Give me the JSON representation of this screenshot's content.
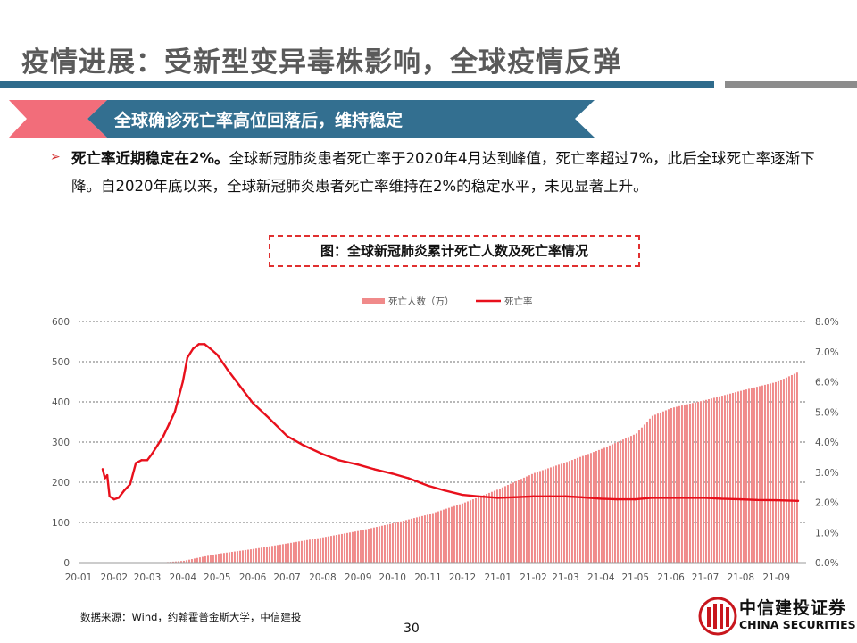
{
  "page": {
    "title": "疫情进展：受新型变异毒株影响，全球疫情反弹",
    "section_heading": "全球确诊死亡率高位回落后，维持稳定",
    "bullet_bold": "死亡率近期稳定在2%。",
    "bullet_text": "全球新冠肺炎患者死亡率于2020年4月达到峰值，死亡率超过7%，此后全球死亡率逐渐下降。自2020年底以来，全球新冠肺炎患者死亡率维持在2%的稳定水平，未见显著上升。",
    "figure_title": "图：全球新冠肺炎累计死亡人数及死亡率情况",
    "source": "数据来源：Wind，约翰霍普金斯大学，中信建投",
    "page_number": "30",
    "logo_cn": "中信建投证券",
    "logo_en": "CHINA SECURITIES"
  },
  "colors": {
    "title_bar": "#2f6b8c",
    "banner_red": "#f26d7a",
    "bar": "#f08a8a",
    "line": "#e8101c"
  },
  "chart_data": {
    "type": "bar",
    "x_axis_labels": [
      "20-01",
      "20-02",
      "20-03",
      "20-04",
      "20-05",
      "20-06",
      "20-07",
      "20-08",
      "20-09",
      "20-10",
      "20-11",
      "20-12",
      "21-01",
      "21-02",
      "21-03",
      "21-04",
      "21-05",
      "21-06",
      "21-07",
      "21-08",
      "21-09"
    ],
    "ylim_left": [
      0,
      600
    ],
    "yticks_left": [
      "0",
      "100",
      "200",
      "300",
      "400",
      "500",
      "600"
    ],
    "ylim_right": [
      0,
      8.0
    ],
    "yticks_right": [
      "0.0%",
      "1.0%",
      "2.0%",
      "3.0%",
      "4.0%",
      "5.0%",
      "6.0%",
      "7.0%",
      "8.0%"
    ],
    "grid": true,
    "legend_position": "top",
    "series": [
      {
        "name": "死亡人数（万）",
        "type": "bar",
        "axis": "left",
        "x": [
          "2020-01-22",
          "2020-02-01",
          "2020-03-01",
          "2020-03-15",
          "2020-04-01",
          "2020-04-15",
          "2020-05-01",
          "2020-06-01",
          "2020-07-01",
          "2020-08-01",
          "2020-09-01",
          "2020-10-01",
          "2020-11-01",
          "2020-12-01",
          "2021-01-01",
          "2021-02-01",
          "2021-03-01",
          "2021-04-01",
          "2021-05-01",
          "2021-05-15",
          "2021-06-01",
          "2021-07-01",
          "2021-08-01",
          "2021-09-01",
          "2021-09-20"
        ],
        "values": [
          0,
          0.03,
          0.3,
          0.8,
          4.5,
          13,
          22,
          34,
          48,
          63,
          79,
          98,
          120,
          148,
          183,
          223,
          250,
          283,
          321,
          365,
          385,
          405,
          428,
          450,
          475
        ]
      },
      {
        "name": "死亡率",
        "type": "line",
        "axis": "right",
        "unit": "%",
        "x": [
          "2020-01-22",
          "2020-01-24",
          "2020-01-26",
          "2020-01-28",
          "2020-02-01",
          "2020-02-05",
          "2020-02-10",
          "2020-02-15",
          "2020-02-20",
          "2020-02-25",
          "2020-03-01",
          "2020-03-05",
          "2020-03-10",
          "2020-03-15",
          "2020-03-20",
          "2020-03-25",
          "2020-04-01",
          "2020-04-05",
          "2020-04-10",
          "2020-04-15",
          "2020-04-20",
          "2020-04-25",
          "2020-05-01",
          "2020-05-10",
          "2020-05-20",
          "2020-06-01",
          "2020-06-15",
          "2020-07-01",
          "2020-07-15",
          "2020-08-01",
          "2020-08-15",
          "2020-09-01",
          "2020-09-15",
          "2020-10-01",
          "2020-10-15",
          "2020-11-01",
          "2020-11-15",
          "2020-12-01",
          "2020-12-15",
          "2021-01-01",
          "2021-01-15",
          "2021-02-01",
          "2021-02-15",
          "2021-03-01",
          "2021-03-15",
          "2021-04-01",
          "2021-04-15",
          "2021-05-01",
          "2021-05-15",
          "2021-06-01",
          "2021-06-15",
          "2021-07-01",
          "2021-07-15",
          "2021-08-01",
          "2021-08-15",
          "2021-09-01",
          "2021-09-20"
        ],
        "values": [
          3.1,
          2.8,
          2.9,
          2.2,
          2.1,
          2.15,
          2.4,
          2.6,
          3.3,
          3.4,
          3.4,
          3.6,
          3.9,
          4.2,
          4.6,
          5.0,
          6.0,
          6.8,
          7.1,
          7.25,
          7.25,
          7.1,
          6.9,
          6.4,
          5.9,
          5.3,
          4.8,
          4.2,
          3.9,
          3.6,
          3.4,
          3.25,
          3.1,
          2.95,
          2.8,
          2.55,
          2.4,
          2.25,
          2.2,
          2.15,
          2.17,
          2.2,
          2.2,
          2.2,
          2.17,
          2.12,
          2.1,
          2.1,
          2.15,
          2.15,
          2.15,
          2.15,
          2.12,
          2.1,
          2.08,
          2.07,
          2.05
        ]
      }
    ]
  }
}
